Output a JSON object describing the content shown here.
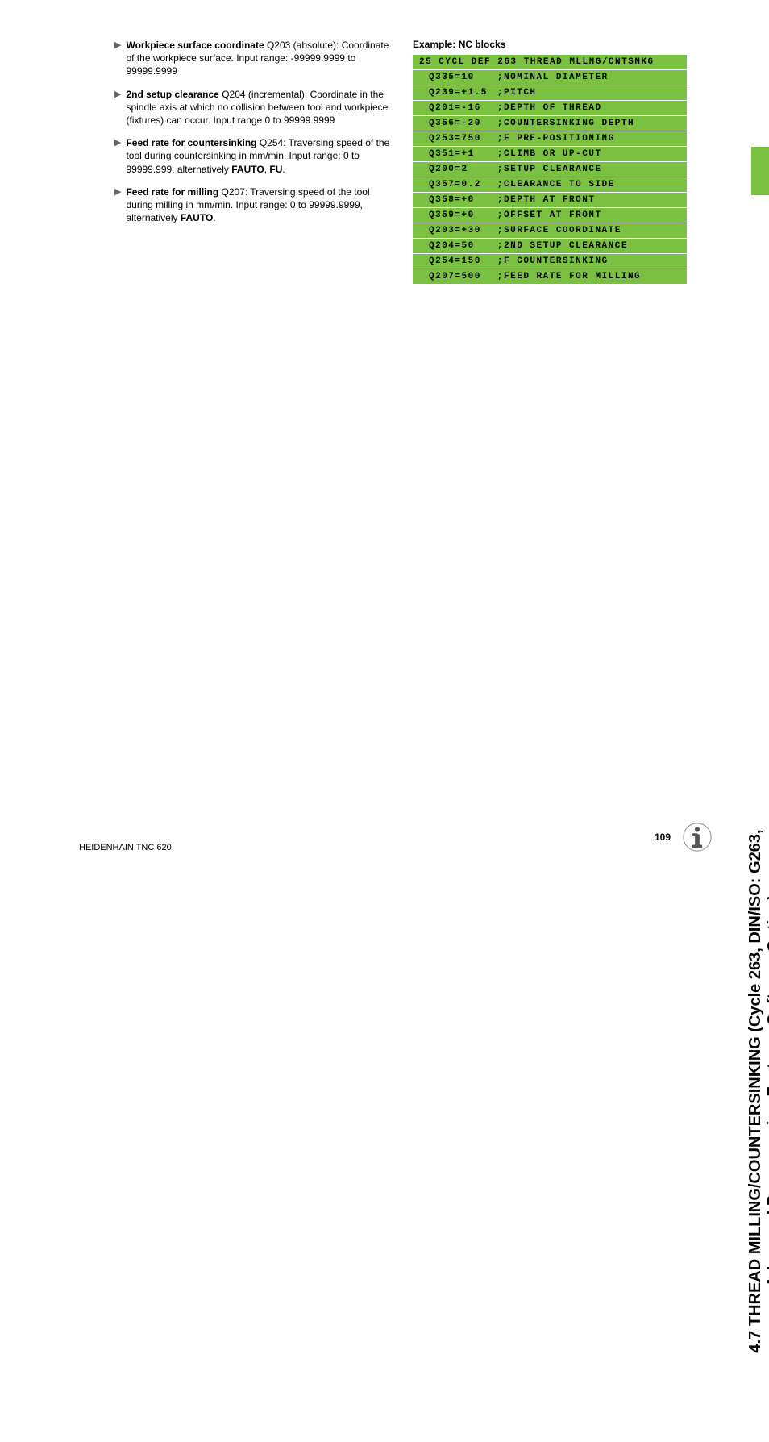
{
  "parameters": [
    {
      "bold_lead": "Workpiece surface coordinate",
      "rest": " Q203 (absolute): Coordinate of the workpiece surface. Input range: -99999.9999 to 99999.9999"
    },
    {
      "bold_lead": "2nd setup clearance",
      "rest": " Q204 (incremental): Coordinate in the spindle axis at which no collision between tool and workpiece (fixtures) can occur. Input range 0 to 99999.9999"
    },
    {
      "bold_lead": "Feed rate for countersinking",
      "rest": " Q254: Traversing speed of the tool during countersinking in mm/min. Input range: 0 to 99999.999, alternatively ",
      "bold_trail": "FAUTO",
      "rest2": ", ",
      "bold_trail2": "FU",
      "rest3": "."
    },
    {
      "bold_lead": "Feed rate for milling",
      "rest": " Q207: Traversing speed of the tool during milling in mm/min. Input range: 0 to 99999.9999, alternatively ",
      "bold_trail": "FAUTO",
      "rest2": "."
    }
  ],
  "example_heading": "Example: NC blocks",
  "nc_blocks": {
    "header": "25 CYCL DEF 263 THREAD MLLNG/CNTSNKG",
    "rows": [
      {
        "code": "Q335=10",
        "comment": ";NOMINAL DIAMETER"
      },
      {
        "code": "Q239=+1.5",
        "comment": ";PITCH"
      },
      {
        "code": "Q201=-16",
        "comment": ";DEPTH OF THREAD"
      },
      {
        "code": "Q356=-20",
        "comment": ";COUNTERSINKING DEPTH"
      },
      {
        "code": "Q253=750",
        "comment": ";F PRE-POSITIONING"
      },
      {
        "code": "Q351=+1",
        "comment": ";CLIMB OR UP-CUT"
      },
      {
        "code": "Q200=2",
        "comment": ";SETUP CLEARANCE"
      },
      {
        "code": "Q357=0.2",
        "comment": ";CLEARANCE TO SIDE"
      },
      {
        "code": "Q358=+0",
        "comment": ";DEPTH AT FRONT"
      },
      {
        "code": "Q359=+0",
        "comment": ";OFFSET AT FRONT"
      },
      {
        "code": "Q203=+30",
        "comment": ";SURFACE COORDINATE"
      },
      {
        "code": "Q204=50",
        "comment": ";2ND SETUP CLEARANCE"
      },
      {
        "code": "Q254=150",
        "comment": ";F COUNTERSINKING"
      },
      {
        "code": "Q207=500",
        "comment": ";FEED RATE FOR MILLING"
      }
    ]
  },
  "side_tab": {
    "line1": "4.7 THREAD MILLING/COUNTERSINKING (Cycle 263, DIN/ISO: G263,",
    "line2": "Advanced Programming Features Software Option)"
  },
  "footer": {
    "left": "HEIDENHAIN TNC 620",
    "page": "109"
  },
  "colors": {
    "nc_green": "#7ac142",
    "arrow_grey": "#666666"
  }
}
